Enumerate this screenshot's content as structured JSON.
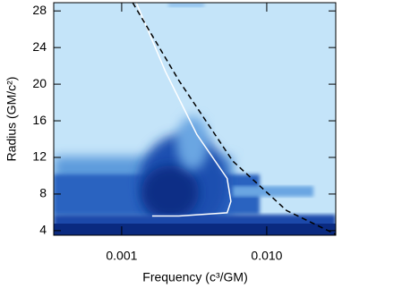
{
  "chart_data": {
    "type": "line",
    "xlabel": "Frequency (c³/GM)",
    "ylabel": "Radius (GM/c²)",
    "xscale": "log",
    "xlim": [
      0.00034,
      0.0299
    ],
    "ylim": [
      3.5,
      28.9
    ],
    "xticks": [
      0.001,
      {
        "value": 0.01,
        "label": "0.010"
      }
    ],
    "yticks": [
      4,
      8,
      12,
      16,
      20,
      24,
      28
    ],
    "series": [
      {
        "color": "#ffffff",
        "dash": false,
        "x": [
          0.00126,
          0.002,
          0.0033,
          0.00533,
          0.00566,
          0.00533,
          0.00248,
          0.00162
        ],
        "values": [
          28.9,
          21.4,
          14.5,
          9.7,
          7.2,
          5.95,
          5.6,
          5.6
        ]
      },
      {
        "color": "#000000",
        "dash": true,
        "x": [
          0.00119,
          0.00248,
          0.00583,
          0.0137,
          0.0299
        ],
        "values": [
          28.9,
          20.4,
          11.6,
          6.2,
          3.6
        ]
      }
    ]
  }
}
